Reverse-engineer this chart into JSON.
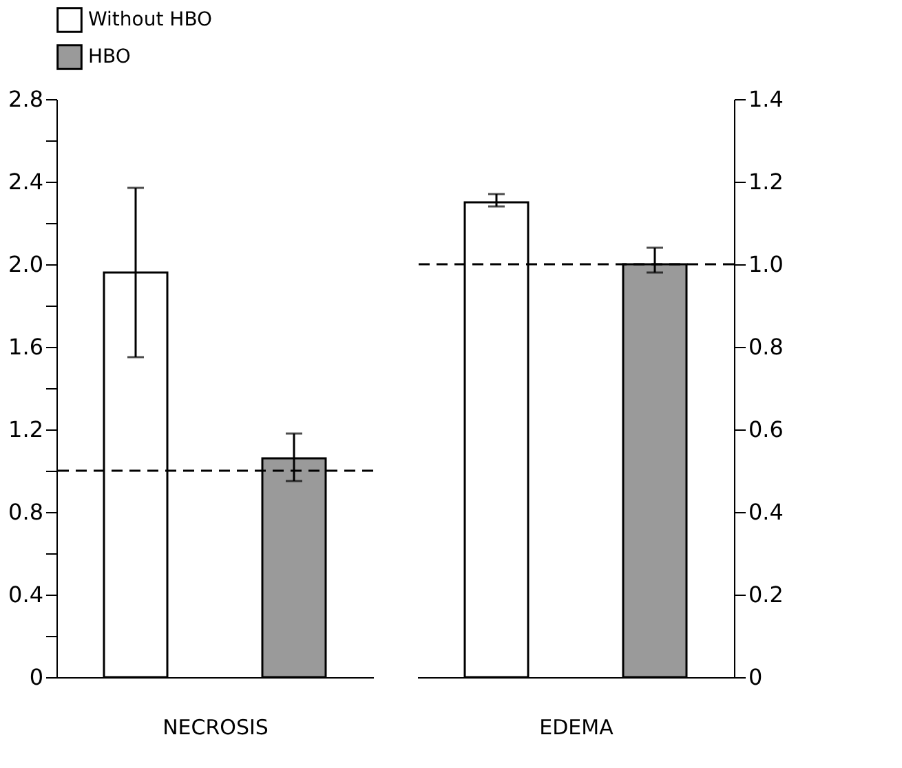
{
  "chart_data": [
    {
      "type": "bar",
      "categories": [
        null,
        null
      ],
      "xlabel": "NECROSIS",
      "legend": "top",
      "ylim": [
        0,
        2.8
      ],
      "yticks": [
        0,
        {
          "value": 0.2,
          "label": null
        },
        0.4,
        {
          "value": 0.6,
          "label": null
        },
        0.8,
        {
          "value": 1.0,
          "label": null
        },
        1.2,
        {
          "value": 1.4,
          "label": null
        },
        1.6,
        {
          "value": 1.8,
          "label": null
        },
        {
          "value": 2.0,
          "label": "2.0"
        },
        {
          "value": 2.2,
          "label": null
        },
        2.4,
        {
          "value": 2.6,
          "label": null
        },
        2.8
      ],
      "grid": false,
      "series": [
        {
          "name": "Without HBO",
          "color": "#ffffff",
          "values": [
            1.96,
            null
          ],
          "errors": [
            [
              1.55,
              2.37
            ],
            null
          ]
        },
        {
          "name": "HBO",
          "color": "#9a9a9a",
          "values": [
            null,
            1.06
          ],
          "errors": [
            null,
            [
              0.95,
              1.18
            ]
          ]
        }
      ],
      "ref_lines": [
        {
          "axis": "y",
          "value": 1.0,
          "line_style": "dashed"
        }
      ]
    },
    {
      "type": "bar",
      "categories": [
        null,
        null
      ],
      "xlabel": "EDEMA",
      "ylim": [
        0,
        1.4
      ],
      "yticks": [
        0,
        0.2,
        0.4,
        0.6,
        0.8,
        {
          "value": 1.0,
          "label": "1.0"
        },
        1.2,
        1.4
      ],
      "grid": false,
      "series": [
        {
          "color": "#ffffff",
          "values": [
            1.15,
            null
          ],
          "errors": [
            [
              1.14,
              1.17
            ],
            null
          ]
        },
        {
          "color": "#9a9a9a",
          "values": [
            null,
            1.0
          ],
          "errors": [
            null,
            [
              0.98,
              1.04
            ]
          ]
        }
      ],
      "ref_lines": [
        {
          "axis": "y",
          "value": 1.0,
          "line_style": "dashed"
        }
      ]
    }
  ]
}
